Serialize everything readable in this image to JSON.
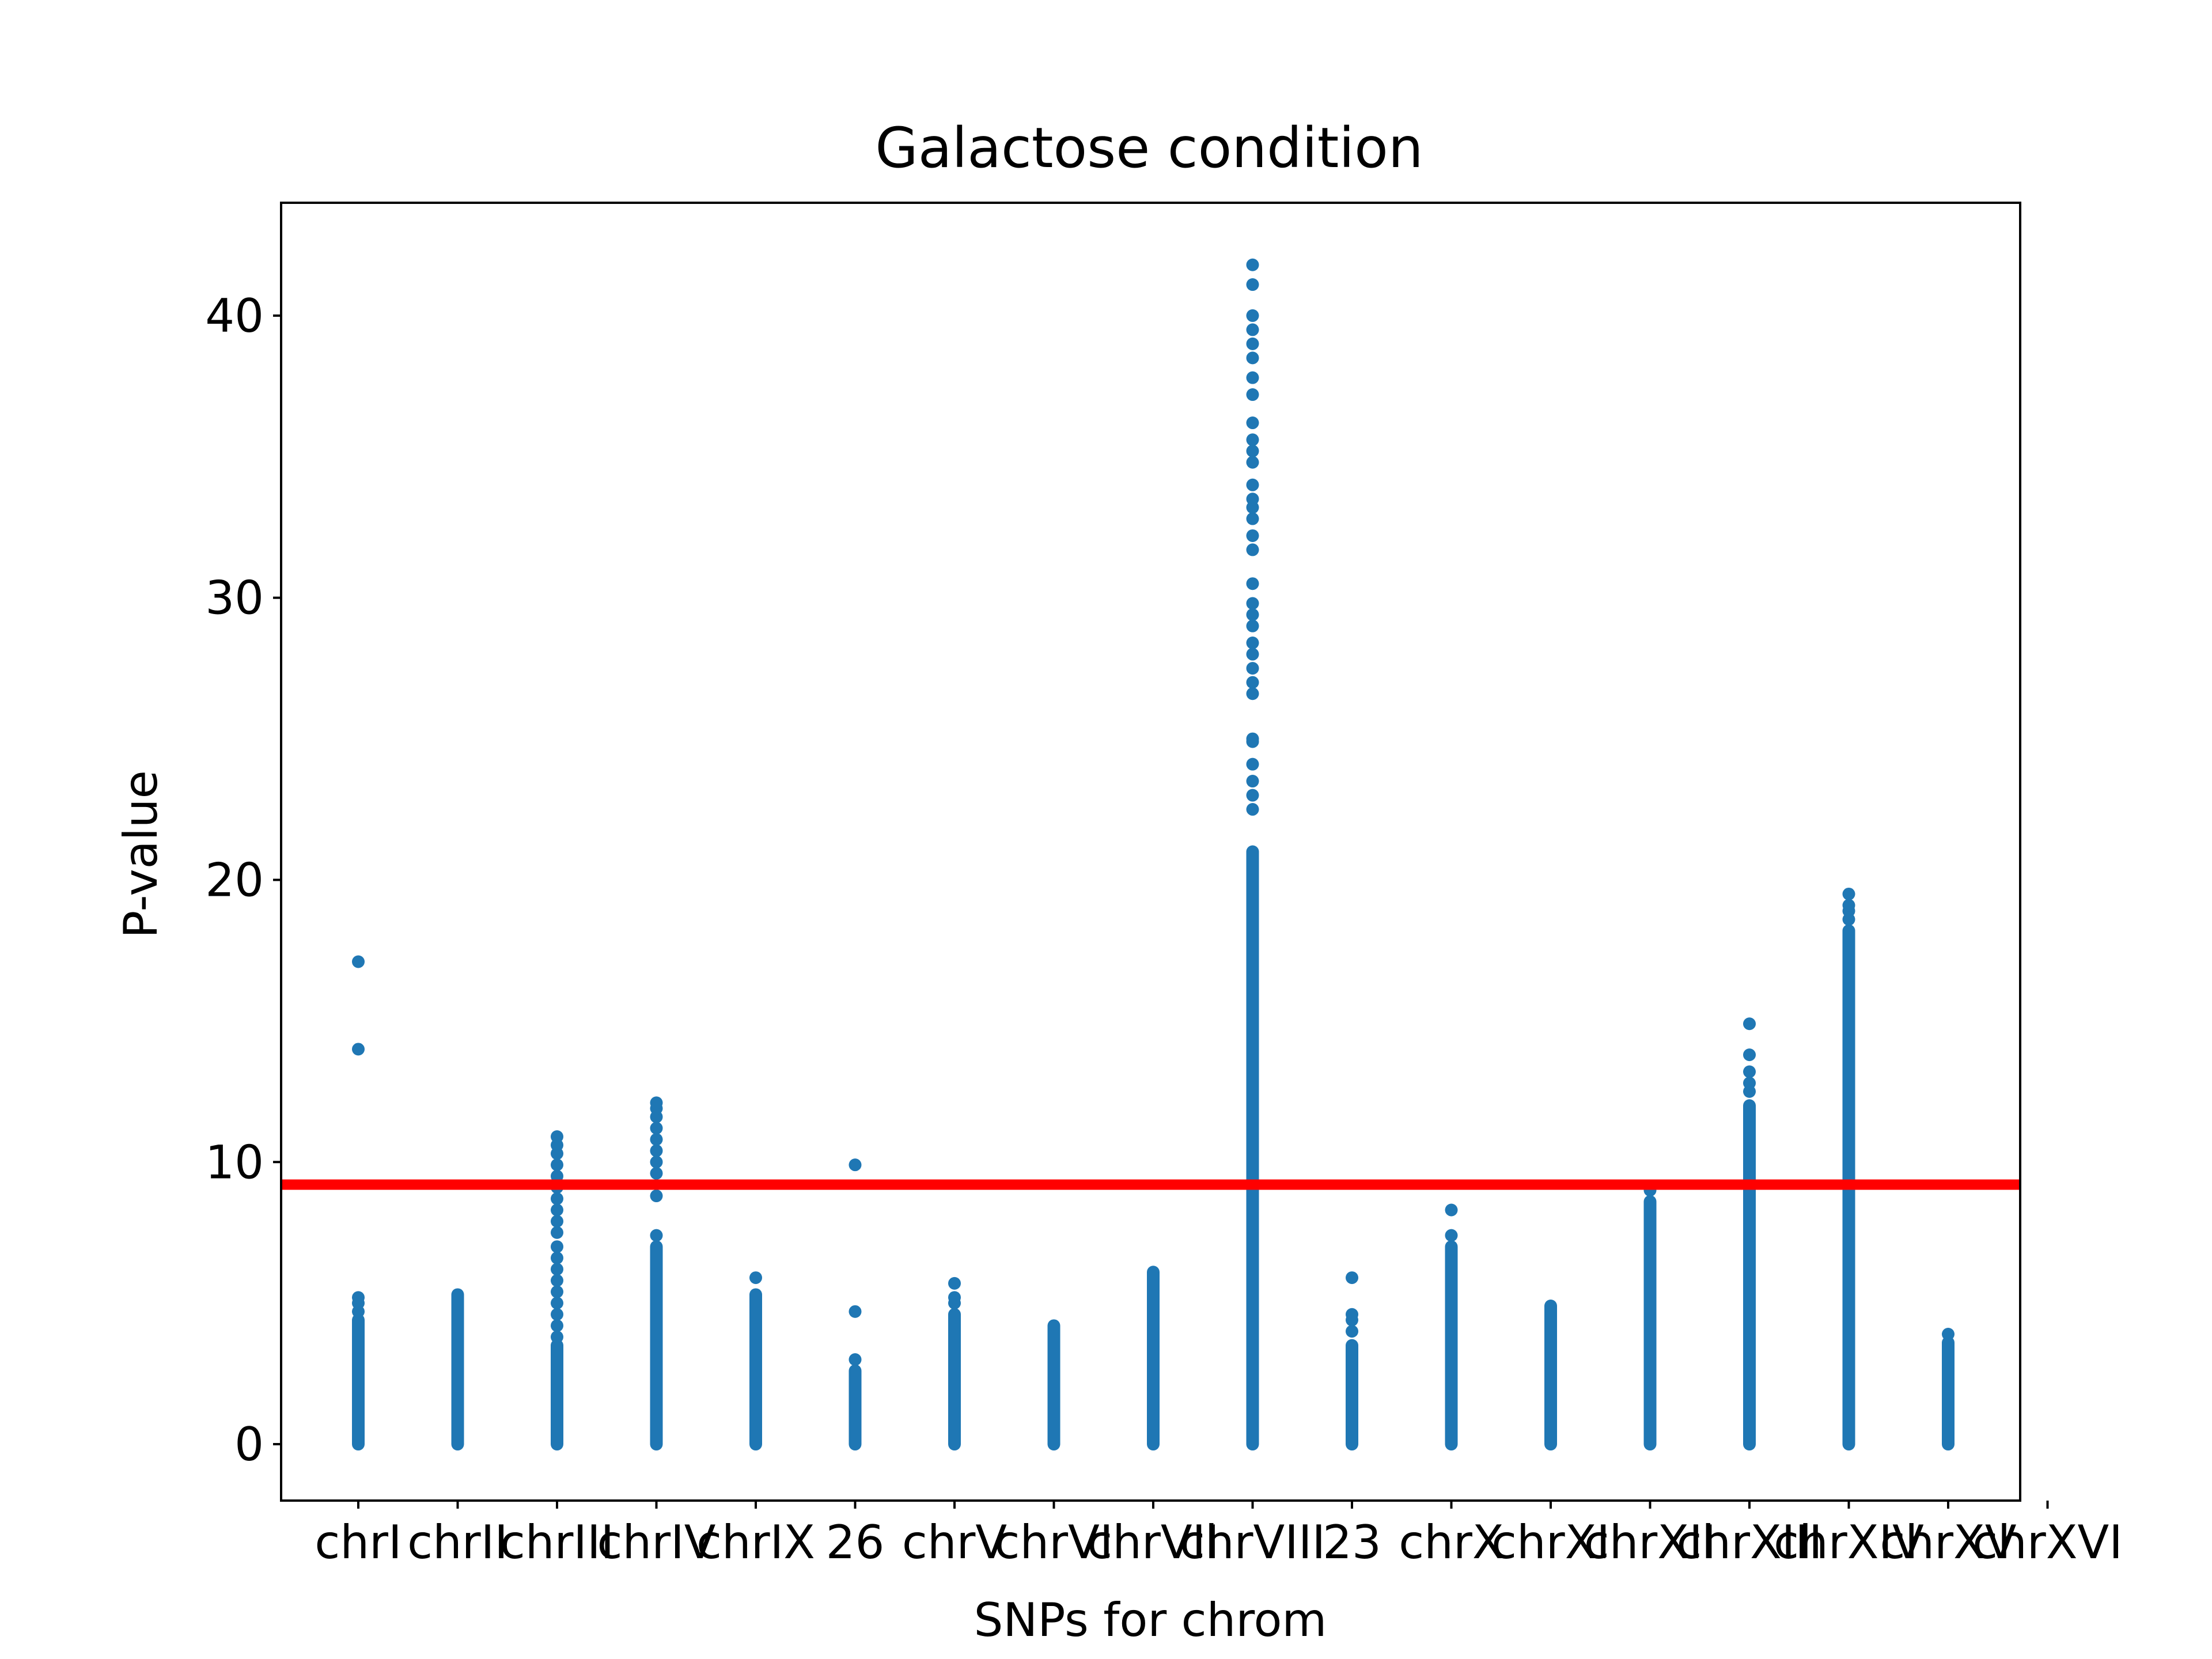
{
  "chart_data": {
    "type": "scatter",
    "title": "Galactose condition",
    "xlabel": "SNPs for chrom",
    "ylabel": "P-value",
    "categories": [
      "chrI",
      "chrII",
      "chrIII",
      "chrIV",
      "chrIX",
      "26",
      "chrV",
      "chrVI",
      "chrVII",
      "chrVIII",
      "23",
      "chrX",
      "chrXI",
      "chrXII",
      "chrXIII",
      "chrXIV",
      "chrXV",
      "chrXVI"
    ],
    "ylim": [
      -2,
      44
    ],
    "yticks": [
      0,
      10,
      20,
      30,
      40
    ],
    "grid": false,
    "threshold": {
      "value": 9.2,
      "color": "#ff0000"
    },
    "point_color": "#1f77b4",
    "series": [
      {
        "category": "chrI",
        "dense_max": 4.4,
        "outliers": [
          4.7,
          5.0,
          5.2,
          14.0,
          17.1
        ]
      },
      {
        "category": "chrII",
        "dense_max": 5.3,
        "outliers": []
      },
      {
        "category": "chrIII",
        "dense_max": 3.5,
        "outliers": [
          3.8,
          4.2,
          4.6,
          5.0,
          5.4,
          5.8,
          6.2,
          6.6,
          7.0,
          7.5,
          7.9,
          8.3,
          8.7,
          9.1,
          9.5,
          9.9,
          10.3,
          10.6,
          10.9
        ]
      },
      {
        "category": "chrIV",
        "dense_max": 7.0,
        "outliers": [
          7.4,
          8.8,
          9.6,
          10.0,
          10.4,
          10.8,
          11.2,
          11.6,
          11.9,
          12.1
        ]
      },
      {
        "category": "chrIX",
        "dense_max": 5.3,
        "outliers": [
          5.9
        ]
      },
      {
        "category": "26",
        "dense_max": 2.6,
        "outliers": [
          3.0,
          4.7,
          9.9
        ]
      },
      {
        "category": "chrV",
        "dense_max": 4.6,
        "outliers": [
          5.0,
          5.2,
          5.7
        ]
      },
      {
        "category": "chrVI",
        "dense_max": 4.2,
        "outliers": []
      },
      {
        "category": "chrVII",
        "dense_max": 6.1,
        "outliers": []
      },
      {
        "category": "chrVIII",
        "dense_max": 21.0,
        "outliers": [
          22.5,
          23.0,
          23.5,
          24.1,
          24.9,
          25.0,
          26.6,
          27.0,
          27.5,
          28.0,
          28.4,
          29.0,
          29.4,
          29.8,
          30.5,
          31.7,
          32.2,
          32.8,
          33.2,
          33.5,
          34.0,
          34.8,
          35.2,
          35.6,
          36.2,
          37.2,
          37.8,
          38.5,
          39.0,
          39.5,
          40.0,
          41.1,
          41.8
        ]
      },
      {
        "category": "23",
        "dense_max": 3.5,
        "outliers": [
          4.0,
          4.4,
          4.6,
          5.9
        ]
      },
      {
        "category": "chrX",
        "dense_max": 7.0,
        "outliers": [
          7.4,
          8.3
        ]
      },
      {
        "category": "chrXI",
        "dense_max": 4.9,
        "outliers": []
      },
      {
        "category": "chrXII",
        "dense_max": 8.6,
        "outliers": [
          9.0
        ]
      },
      {
        "category": "chrXIII",
        "dense_max": 12.0,
        "outliers": [
          12.5,
          12.8,
          13.2,
          13.8,
          14.9
        ]
      },
      {
        "category": "chrXIV",
        "dense_max": 18.2,
        "outliers": [
          18.6,
          18.9,
          19.1,
          19.5
        ]
      },
      {
        "category": "chrXV",
        "dense_max": 3.6,
        "outliers": [
          3.9
        ]
      }
    ]
  }
}
